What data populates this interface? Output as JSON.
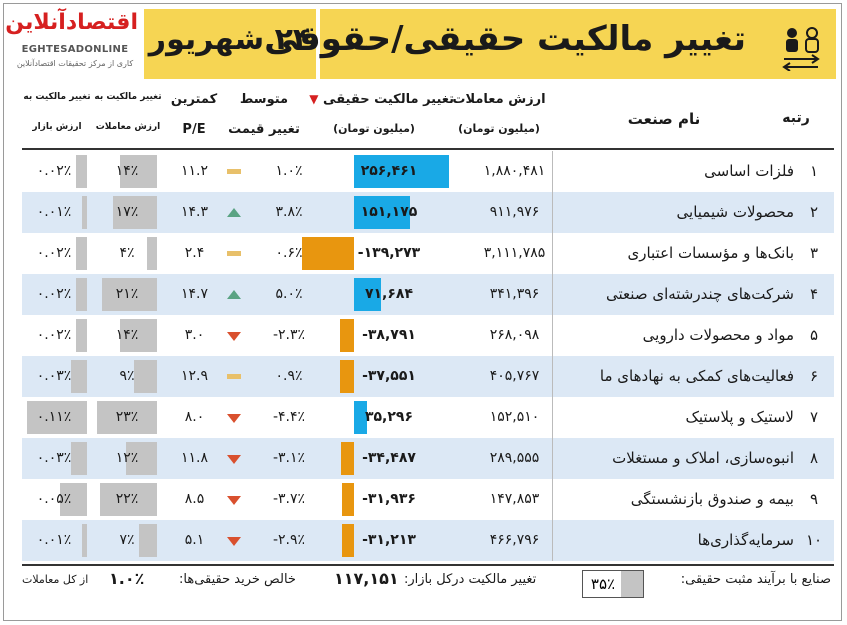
{
  "header": {
    "title": "تغییر مالکیت حقیقی/حقوقی",
    "date": "۲۴ شهریور",
    "logo_name": "اقتصادآنلاین",
    "logo_latin": "EGHTESADONLINE",
    "logo_sub": "کاری از مرکز تحقیقات اقتصادآنلاین"
  },
  "columns": {
    "rank": "رتبه",
    "industry": "نام صنعت",
    "trade_value": "ارزش معاملات",
    "trade_value_unit": "(میلیون تومان)",
    "ownership_change": "تغییر مالکیت حقیقی",
    "ownership_change_unit": "(میلیون تومان)",
    "avg_price_change_1": "متوسط",
    "avg_price_change_2": "تغییر قیمت",
    "min_pe_1": "کمترین",
    "min_pe_2": "P/E",
    "ratio_trade_1": "تغییر مالکیت به",
    "ratio_trade_2": "ارزش معاملات",
    "ratio_market_1": "تغییر مالکیت به",
    "ratio_market_2": "ارزش بازار"
  },
  "colors": {
    "positive_bar": "#19a9e6",
    "negative_bar": "#e8960f",
    "up_arrow": "#5aa383",
    "down_arrow": "#d9502e",
    "neutral": "#e8c06a",
    "ratio_bar": "#c4c4c4",
    "alt_row": "#dce8f5",
    "banner": "#f6d553"
  },
  "chart_data": {
    "type": "table",
    "rows": [
      {
        "rank": "۱",
        "name": "فلزات اساسی",
        "trade": "۱,۸۸۰,۴۸۱",
        "change": "۲۵۶,۴۶۱",
        "change_value": 256461,
        "avg": "۱.۰٪",
        "avg_trend": "neutral",
        "pe": "۱۱.۲",
        "ratio_trade": "۱۴٪",
        "ratio_trade_value": 14,
        "ratio_market": "۰.۰۲٪",
        "ratio_market_value": 0.02
      },
      {
        "rank": "۲",
        "name": "محصولات شیمیایی",
        "trade": "۹۱۱,۹۷۶",
        "change": "۱۵۱,۱۷۵",
        "change_value": 151175,
        "avg": "۳.۸٪",
        "avg_trend": "up",
        "pe": "۱۴.۳",
        "ratio_trade": "۱۷٪",
        "ratio_trade_value": 17,
        "ratio_market": "۰.۰۱٪",
        "ratio_market_value": 0.01
      },
      {
        "rank": "۳",
        "name": "بانک‌ها و مؤسسات اعتباری",
        "trade": "۳,۱۱۱,۷۸۵",
        "change": "-۱۳۹,۲۷۳",
        "change_value": -139273,
        "avg": "۰.۶٪",
        "avg_trend": "neutral",
        "pe": "۲.۴",
        "ratio_trade": "۴٪",
        "ratio_trade_value": 4,
        "ratio_market": "۰.۰۲٪",
        "ratio_market_value": 0.02
      },
      {
        "rank": "۴",
        "name": "شرکت‌های چندرشته‌ای صنعتی",
        "trade": "۳۴۱,۳۹۶",
        "change": "۷۱,۶۸۴",
        "change_value": 71684,
        "avg": "۵.۰٪",
        "avg_trend": "up",
        "pe": "۱۴.۷",
        "ratio_trade": "۲۱٪",
        "ratio_trade_value": 21,
        "ratio_market": "۰.۰۲٪",
        "ratio_market_value": 0.02
      },
      {
        "rank": "۵",
        "name": "مواد و محصولات دارویی",
        "trade": "۲۶۸,۰۹۸",
        "change": "-۳۸,۷۹۱",
        "change_value": -38791,
        "avg": "-۲.۳٪",
        "avg_trend": "down",
        "pe": "۳.۰",
        "ratio_trade": "۱۴٪",
        "ratio_trade_value": 14,
        "ratio_market": "۰.۰۲٪",
        "ratio_market_value": 0.02
      },
      {
        "rank": "۶",
        "name": "فعالیت‌های کمکی به نهادهای ما",
        "trade": "۴۰۵,۷۶۷",
        "change": "-۳۷,۵۵۱",
        "change_value": -37551,
        "avg": "۰.۹٪",
        "avg_trend": "neutral",
        "pe": "۱۲.۹",
        "ratio_trade": "۹٪",
        "ratio_trade_value": 9,
        "ratio_market": "۰.۰۳٪",
        "ratio_market_value": 0.03
      },
      {
        "rank": "۷",
        "name": "لاستیک و پلاستیک",
        "trade": "۱۵۲,۵۱۰",
        "change": "۳۵,۲۹۶",
        "change_value": 35296,
        "avg": "-۴.۴٪",
        "avg_trend": "down",
        "pe": "۸.۰",
        "ratio_trade": "۲۳٪",
        "ratio_trade_value": 23,
        "ratio_market": "۰.۱۱٪",
        "ratio_market_value": 0.11
      },
      {
        "rank": "۸",
        "name": "انبوه‌سازی، املاک و مستغلات",
        "trade": "۲۸۹,۵۵۵",
        "change": "-۳۴,۴۸۷",
        "change_value": -34487,
        "avg": "-۳.۱٪",
        "avg_trend": "down",
        "pe": "۱۱.۸",
        "ratio_trade": "۱۲٪",
        "ratio_trade_value": 12,
        "ratio_market": "۰.۰۳٪",
        "ratio_market_value": 0.03
      },
      {
        "rank": "۹",
        "name": "بیمه و صندوق بازنشستگی",
        "trade": "۱۴۷,۸۵۳",
        "change": "-۳۱,۹۳۶",
        "change_value": -31936,
        "avg": "-۳.۷٪",
        "avg_trend": "down",
        "pe": "۸.۵",
        "ratio_trade": "۲۲٪",
        "ratio_trade_value": 22,
        "ratio_market": "۰.۰۵٪",
        "ratio_market_value": 0.05
      },
      {
        "rank": "۱۰",
        "name": "سرمایه‌گذاری‌ها",
        "trade": "۴۶۶,۷۹۶",
        "change": "-۳۱,۲۱۳",
        "change_value": -31213,
        "avg": "-۲.۹٪",
        "avg_trend": "down",
        "pe": "۵.۱",
        "ratio_trade": "۷٪",
        "ratio_trade_value": 7,
        "ratio_market": "۰.۰۱٪",
        "ratio_market_value": 0.01
      }
    ]
  },
  "footer": {
    "positive_label": "صنایع با برآیند مثبت حقیقی:",
    "positive_value": "۳۵٪",
    "market_change_label": "تغییر مالکیت درکل بازار:",
    "market_change_value": "۱۱۷,۱۵۱",
    "net_buy_label": "خالص خرید حقیقی‌ها:",
    "net_buy_value": "۱.۰٪",
    "net_buy_suffix": "از کل معاملات"
  }
}
